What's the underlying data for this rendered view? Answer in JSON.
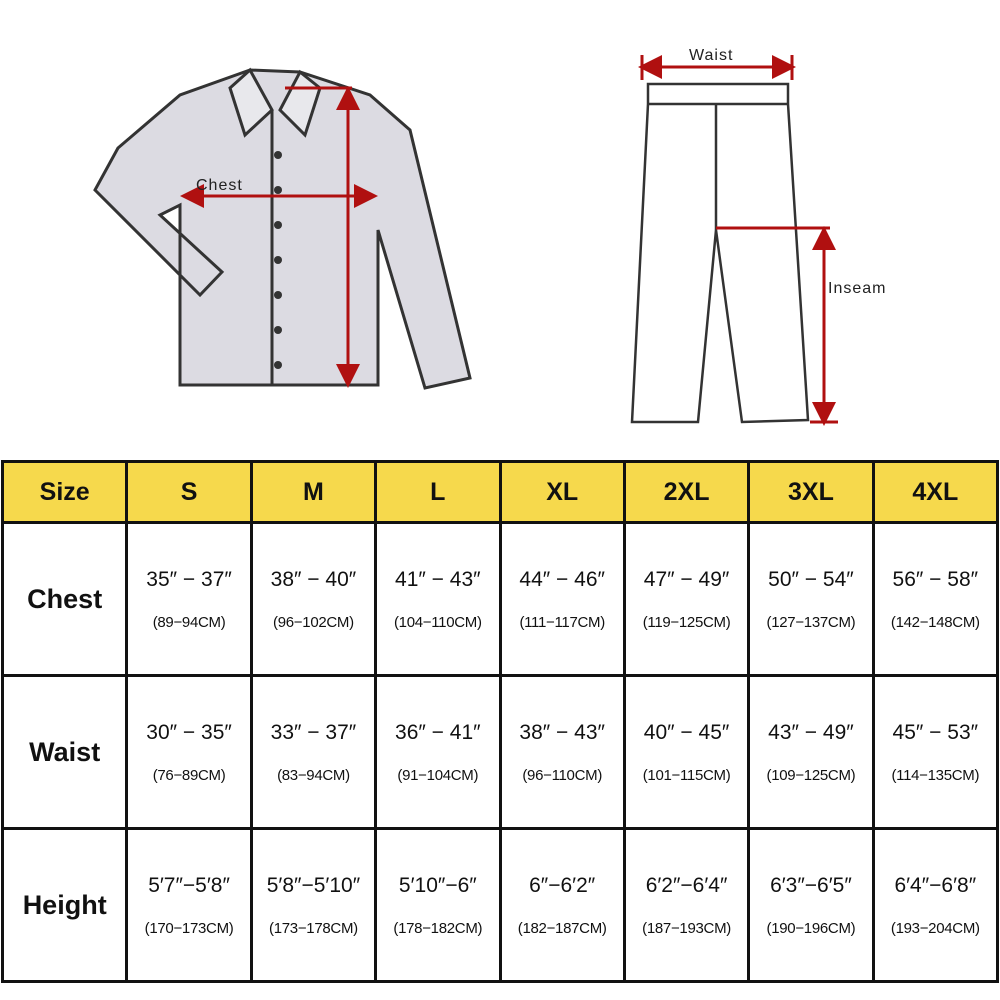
{
  "illustrations": {
    "shirt_label": "Chest",
    "pants_waist_label": "Waist",
    "pants_inseam_label": "Inseam",
    "arrow_color": "#b01010"
  },
  "table": {
    "header_color": "#f6d94c",
    "columns": [
      "Size",
      "S",
      "M",
      "L",
      "XL",
      "2XL",
      "3XL",
      "4XL"
    ],
    "rows": [
      {
        "label": "Chest",
        "cells": [
          {
            "in": "35″ − 37″",
            "cm": "(89−94CM)"
          },
          {
            "in": "38″ − 40″",
            "cm": "(96−102CM)"
          },
          {
            "in": "41″ − 43″",
            "cm": "(104−110CM)"
          },
          {
            "in": "44″ − 46″",
            "cm": "(111−117CM)"
          },
          {
            "in": "47″ − 49″",
            "cm": "(119−125CM)"
          },
          {
            "in": "50″ − 54″",
            "cm": "(127−137CM)"
          },
          {
            "in": "56″ − 58″",
            "cm": "(142−148CM)"
          }
        ]
      },
      {
        "label": "Waist",
        "cells": [
          {
            "in": "30″ − 35″",
            "cm": "(76−89CM)"
          },
          {
            "in": "33″ − 37″",
            "cm": "(83−94CM)"
          },
          {
            "in": "36″ − 41″",
            "cm": "(91−104CM)"
          },
          {
            "in": "38″ − 43″",
            "cm": "(96−110CM)"
          },
          {
            "in": "40″ − 45″",
            "cm": "(101−115CM)"
          },
          {
            "in": "43″ − 49″",
            "cm": "(109−125CM)"
          },
          {
            "in": "45″ − 53″",
            "cm": "(114−135CM)"
          }
        ]
      },
      {
        "label": "Height",
        "cells": [
          {
            "in": "5′7″−5′8″",
            "cm": "(170−173CM)"
          },
          {
            "in": "5′8″−5′10″",
            "cm": "(173−178CM)"
          },
          {
            "in": "5′10″−6″",
            "cm": "(178−182CM)"
          },
          {
            "in": "6″−6′2″",
            "cm": "(182−187CM)"
          },
          {
            "in": "6′2″−6′4″",
            "cm": "(187−193CM)"
          },
          {
            "in": "6′3″−6′5″",
            "cm": "(190−196CM)"
          },
          {
            "in": "6′4″−6′8″",
            "cm": "(193−204CM)"
          }
        ]
      }
    ]
  }
}
